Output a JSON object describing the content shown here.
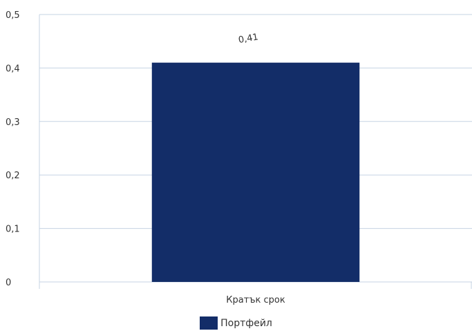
{
  "chart_data": {
    "type": "bar",
    "categories": [
      "Кратък срок"
    ],
    "series": [
      {
        "name": "Портфейл",
        "values": [
          0.41
        ],
        "color": "#132d68"
      }
    ],
    "data_labels": [
      "0,41"
    ],
    "ylim": [
      0,
      0.5
    ],
    "yticks": [
      0,
      0.1,
      0.2,
      0.3,
      0.4,
      0.5
    ],
    "ytick_labels": [
      "0",
      "0,1",
      "0,2",
      "0,3",
      "0,4",
      "0,5"
    ],
    "grid": true,
    "grid_color": "#c5d3e3",
    "legend_position": "bottom",
    "title": "",
    "xlabel": "",
    "ylabel": ""
  }
}
